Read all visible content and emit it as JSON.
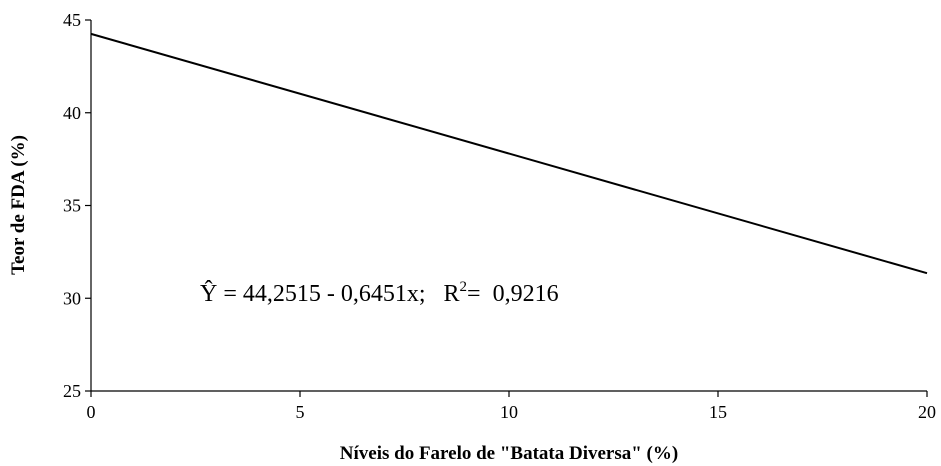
{
  "chart_data": {
    "type": "line",
    "title": "",
    "xlabel": "Níveis do Farelo de \"Batata Diversa\" (%)",
    "ylabel": "Teor de FDA (%)",
    "xlim": [
      0,
      20
    ],
    "ylim": [
      25,
      45
    ],
    "xticks": [
      0,
      5,
      10,
      15,
      20
    ],
    "yticks": [
      25,
      30,
      35,
      40,
      45
    ],
    "grid": false,
    "series": [
      {
        "x": [
          0,
          20
        ],
        "y": [
          44.2515,
          31.3495
        ]
      }
    ],
    "annotation": {
      "yhat": "Ŷ",
      "equation": " = 44,2515 - 0,6451x;   R",
      "superscript": "2",
      "r2": "=  0,9216"
    }
  }
}
